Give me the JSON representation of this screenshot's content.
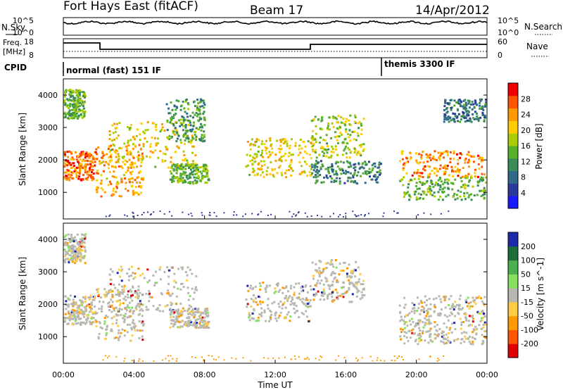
{
  "header": {
    "station": "Fort Hays East (fitACF)",
    "beam": "Beam 17",
    "date": "14/Apr/2012"
  },
  "top_panels": {
    "nsky_label": "N.Sky",
    "nsky_ticks": [
      "10^5",
      "10^0"
    ],
    "nsearch_label": "N.Search",
    "nsearch_ticks": [
      "10^5",
      "10^0"
    ],
    "freq_label_line1": "Freq.",
    "freq_label_line2": "[MHz]",
    "freq_ticks": [
      "18",
      "8"
    ],
    "nave_label": "Nave",
    "nave_ticks": [
      "60",
      "0"
    ],
    "cpid_label": "CPID",
    "cpid_modes": [
      {
        "label": "normal (fast) 151 IF",
        "start_hour": 0
      },
      {
        "label": "themis 3300 IF",
        "start_hour": 18
      }
    ]
  },
  "chart_data": [
    {
      "type": "heatmap",
      "parameter": "power",
      "ylabel": "Slant Range [km]",
      "yticks": [
        "4000",
        "3000",
        "2000",
        "1000"
      ],
      "ylim": [
        180,
        4500
      ],
      "xlim": [
        0,
        24
      ],
      "colorbar_label": "Power [dB]",
      "colorbar_ticks": [
        "28",
        "24",
        "20",
        "16",
        "12",
        "8",
        "4"
      ],
      "colorbar_colors": [
        "#1a1aff",
        "#2a3a9a",
        "#2f6a8a",
        "#3a8a5a",
        "#55b02a",
        "#aacc00",
        "#ffcc00",
        "#ff9900",
        "#ff5500",
        "#ee0000"
      ],
      "echo_bands": [
        {
          "t": [
            0,
            1.8
          ],
          "r": [
            1400,
            2300
          ],
          "level": 0.85
        },
        {
          "t": [
            0,
            1.2
          ],
          "r": [
            3300,
            4200
          ],
          "level": 0.45
        },
        {
          "t": [
            1.8,
            4.5
          ],
          "r": [
            900,
            2500
          ],
          "level": 0.75
        },
        {
          "t": [
            2.5,
            7.5
          ],
          "r": [
            1800,
            3200
          ],
          "level": 0.65
        },
        {
          "t": [
            5.8,
            8.0
          ],
          "r": [
            2600,
            3900
          ],
          "level": 0.35
        },
        {
          "t": [
            6.0,
            8.2
          ],
          "r": [
            1300,
            1900
          ],
          "level": 0.45
        },
        {
          "t": [
            10.3,
            14.0
          ],
          "r": [
            1500,
            2700
          ],
          "level": 0.65
        },
        {
          "t": [
            14.0,
            17.0
          ],
          "r": [
            2100,
            3400
          ],
          "level": 0.55
        },
        {
          "t": [
            14.0,
            18.0
          ],
          "r": [
            1300,
            2000
          ],
          "level": 0.3
        },
        {
          "t": [
            19.0,
            24.0
          ],
          "r": [
            1500,
            2300
          ],
          "level": 0.8
        },
        {
          "t": [
            19.0,
            24.0
          ],
          "r": [
            800,
            1500
          ],
          "level": 0.45
        },
        {
          "t": [
            21.5,
            24.0
          ],
          "r": [
            3200,
            3900
          ],
          "level": 0.25
        }
      ]
    },
    {
      "type": "heatmap",
      "parameter": "velocity",
      "ylabel": "Slant Range [km]",
      "yticks": [
        "4000",
        "3000",
        "2000",
        "1000"
      ],
      "ylim": [
        180,
        4500
      ],
      "xlim": [
        0,
        24
      ],
      "xticks": [
        "00:00",
        "04:00",
        "08:00",
        "12:00",
        "16:00",
        "20:00",
        "00:00"
      ],
      "xlabel": "Time UT",
      "colorbar_label": "Velocity [m s^-1]",
      "colorbar_ticks": [
        "200",
        "100",
        "50",
        "15",
        "-15",
        "-50",
        "-100",
        "-200"
      ],
      "colorbar_colors": [
        "#1e2aa8",
        "#1e6e3a",
        "#4caf50",
        "#88e060",
        "#b8b8b0",
        "#ffcc44",
        "#ff9900",
        "#ff5500",
        "#e00000"
      ],
      "echo_bands": [
        {
          "t": [
            0,
            1.8
          ],
          "r": [
            1400,
            2300
          ],
          "level": 0.6
        },
        {
          "t": [
            0,
            1.2
          ],
          "r": [
            3300,
            4200
          ],
          "level": 0.3
        },
        {
          "t": [
            1.8,
            4.5
          ],
          "r": [
            900,
            2500
          ],
          "level": 0.6
        },
        {
          "t": [
            2.5,
            7.5
          ],
          "r": [
            1800,
            3200
          ],
          "level": 0.6
        },
        {
          "t": [
            6.0,
            8.2
          ],
          "r": [
            1300,
            1900
          ],
          "level": 0.5
        },
        {
          "t": [
            10.3,
            14.0
          ],
          "r": [
            1500,
            2700
          ],
          "level": 0.55
        },
        {
          "t": [
            14.0,
            17.0
          ],
          "r": [
            2100,
            3400
          ],
          "level": 0.55
        },
        {
          "t": [
            19.0,
            24.0
          ],
          "r": [
            1500,
            2300
          ],
          "level": 0.7
        },
        {
          "t": [
            19.0,
            24.0
          ],
          "r": [
            800,
            1500
          ],
          "level": 0.45
        }
      ]
    }
  ]
}
